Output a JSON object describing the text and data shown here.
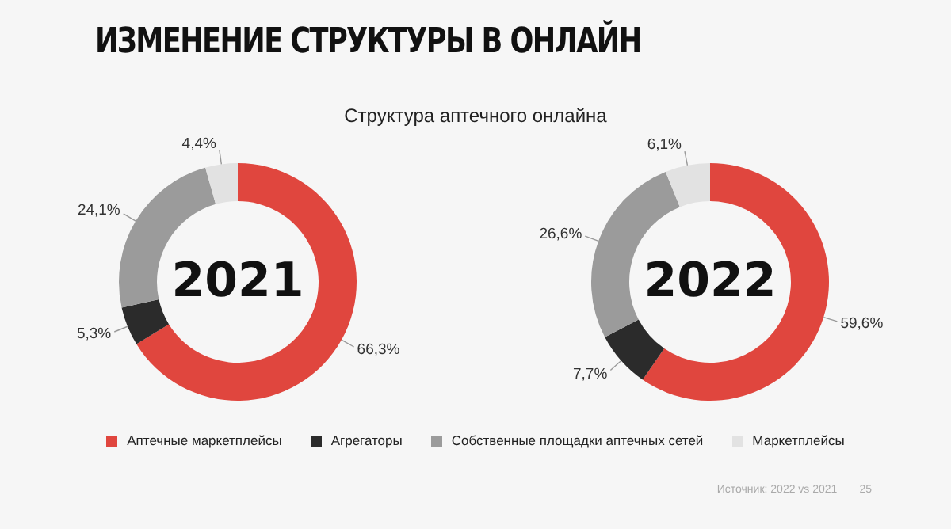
{
  "chart_data": [
    {
      "type": "donut",
      "title": "ИЗМЕНЕНИЕ СТРУКТУРЫ В ОНЛАЙН",
      "subtitle": "Структура аптечного онлайна",
      "categories": [
        "Аптечные маркетплейсы",
        "Агрегаторы",
        "Собственные площадки аптечных сетей",
        "Маркетплейсы"
      ],
      "values": [
        66.3,
        5.3,
        24.1,
        4.4
      ],
      "value_labels": [
        "66,3%",
        "5,3%",
        "24,1%",
        "4,4%"
      ],
      "colors": [
        "#e0463e",
        "#2b2b2b",
        "#9b9b9b",
        "#e2e2e2"
      ],
      "legend": "bottom",
      "annotations": [
        "2021",
        "Источник: 2022 vs 2021",
        "25"
      ]
    },
    {
      "type": "donut",
      "categories": [
        null,
        null,
        null,
        null
      ],
      "values": [
        59.6,
        7.7,
        26.6,
        6.1
      ],
      "value_labels": [
        "59,6%",
        "7,7%",
        "26,6%",
        "6,1%"
      ],
      "colors": [
        "#e0463e",
        "#2b2b2b",
        "#9b9b9b",
        "#e2e2e2"
      ],
      "annotations": [
        "2022"
      ]
    }
  ]
}
